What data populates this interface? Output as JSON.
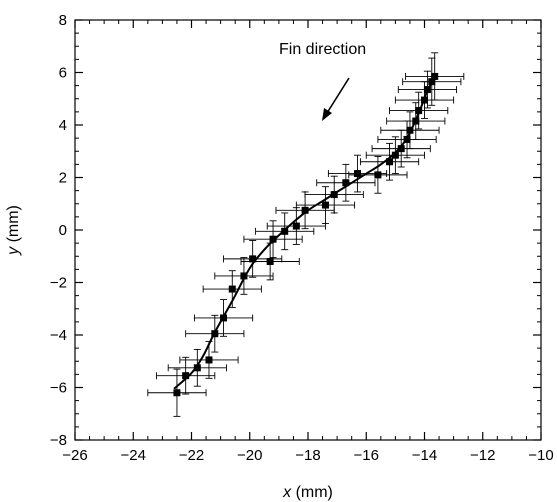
{
  "chart_data": {
    "type": "scatter",
    "xlabel_var": "x",
    "xlabel_unit": "(mm)",
    "ylabel_var": "y",
    "ylabel_unit": "(mm)",
    "xlim": [
      -26,
      -10
    ],
    "ylim": [
      -8,
      8
    ],
    "x_ticks": [
      -26,
      -24,
      -22,
      -20,
      -18,
      -16,
      -14,
      -12,
      -10
    ],
    "y_ticks": [
      -8,
      -6,
      -4,
      -2,
      0,
      2,
      4,
      6,
      8
    ],
    "x_tick_labels": [
      "−26",
      "−24",
      "−22",
      "−20",
      "−18",
      "−16",
      "−14",
      "−12",
      "−10"
    ],
    "y_tick_labels": [
      "−8",
      "−6",
      "−4",
      "−2",
      "0",
      "2",
      "4",
      "6",
      "8"
    ],
    "grid": false,
    "annotation": "Fin direction",
    "points": [
      {
        "x": -22.5,
        "y": -6.2,
        "xerr": 1.0,
        "yerr": 0.9
      },
      {
        "x": -22.2,
        "y": -5.55,
        "xerr": 1.0,
        "yerr": 0.7
      },
      {
        "x": -21.8,
        "y": -5.25,
        "xerr": 1.0,
        "yerr": 0.7
      },
      {
        "x": -21.4,
        "y": -4.95,
        "xerr": 1.0,
        "yerr": 0.7
      },
      {
        "x": -21.2,
        "y": -3.95,
        "xerr": 1.0,
        "yerr": 0.7
      },
      {
        "x": -20.9,
        "y": -3.35,
        "xerr": 1.0,
        "yerr": 0.7
      },
      {
        "x": -20.6,
        "y": -2.25,
        "xerr": 1.0,
        "yerr": 0.7
      },
      {
        "x": -20.2,
        "y": -1.75,
        "xerr": 1.0,
        "yerr": 0.7
      },
      {
        "x": -19.9,
        "y": -1.1,
        "xerr": 1.0,
        "yerr": 0.7
      },
      {
        "x": -19.3,
        "y": -1.2,
        "xerr": 1.0,
        "yerr": 0.7
      },
      {
        "x": -19.2,
        "y": -0.35,
        "xerr": 1.0,
        "yerr": 0.7
      },
      {
        "x": -18.8,
        "y": -0.05,
        "xerr": 1.0,
        "yerr": 0.7
      },
      {
        "x": -18.4,
        "y": 0.15,
        "xerr": 1.0,
        "yerr": 0.7
      },
      {
        "x": -18.1,
        "y": 0.75,
        "xerr": 1.0,
        "yerr": 0.7
      },
      {
        "x": -17.4,
        "y": 0.95,
        "xerr": 1.0,
        "yerr": 0.7
      },
      {
        "x": -17.1,
        "y": 1.35,
        "xerr": 1.0,
        "yerr": 0.7
      },
      {
        "x": -16.7,
        "y": 1.8,
        "xerr": 1.0,
        "yerr": 0.7
      },
      {
        "x": -16.3,
        "y": 2.15,
        "xerr": 1.0,
        "yerr": 0.7
      },
      {
        "x": -15.6,
        "y": 2.1,
        "xerr": 1.0,
        "yerr": 0.7
      },
      {
        "x": -15.2,
        "y": 2.6,
        "xerr": 1.0,
        "yerr": 0.7
      },
      {
        "x": -15.0,
        "y": 2.85,
        "xerr": 1.0,
        "yerr": 0.7
      },
      {
        "x": -14.8,
        "y": 3.1,
        "xerr": 1.0,
        "yerr": 0.7
      },
      {
        "x": -14.6,
        "y": 3.45,
        "xerr": 1.0,
        "yerr": 0.7
      },
      {
        "x": -14.5,
        "y": 3.8,
        "xerr": 1.0,
        "yerr": 0.7
      },
      {
        "x": -14.3,
        "y": 4.15,
        "xerr": 1.0,
        "yerr": 0.7
      },
      {
        "x": -14.2,
        "y": 4.55,
        "xerr": 1.0,
        "yerr": 0.7
      },
      {
        "x": -14.0,
        "y": 4.95,
        "xerr": 1.0,
        "yerr": 0.7
      },
      {
        "x": -13.9,
        "y": 5.35,
        "xerr": 1.0,
        "yerr": 0.7
      },
      {
        "x": -13.75,
        "y": 5.65,
        "xerr": 1.0,
        "yerr": 0.9
      },
      {
        "x": -13.65,
        "y": 5.85,
        "xerr": 1.0,
        "yerr": 0.9
      }
    ],
    "fit_curve": [
      [
        -22.6,
        -6.05
      ],
      [
        -22.0,
        -5.45
      ],
      [
        -21.6,
        -4.8
      ],
      [
        -21.2,
        -3.9
      ],
      [
        -20.6,
        -2.7
      ],
      [
        -20.0,
        -1.45
      ],
      [
        -19.5,
        -0.75
      ],
      [
        -19.0,
        -0.2
      ],
      [
        -18.5,
        0.3
      ],
      [
        -18.0,
        0.75
      ],
      [
        -17.5,
        1.1
      ],
      [
        -17.0,
        1.45
      ],
      [
        -16.5,
        1.8
      ],
      [
        -16.0,
        2.15
      ],
      [
        -15.5,
        2.5
      ],
      [
        -15.0,
        2.95
      ],
      [
        -14.6,
        3.5
      ],
      [
        -14.2,
        4.45
      ],
      [
        -13.9,
        5.3
      ],
      [
        -13.6,
        5.9
      ]
    ]
  }
}
